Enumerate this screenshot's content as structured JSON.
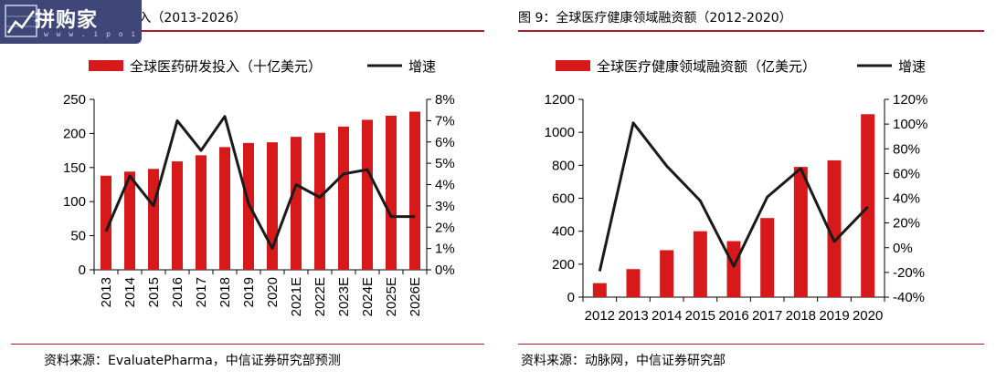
{
  "watermark": {
    "name": "拼购家",
    "url": "w w w . i p o i p o . c n"
  },
  "left": {
    "title": "图 8：全球医药研发投入（2013-2026）",
    "source": "资料来源：EvaluatePharma，中信证券研究部预测",
    "accent_color": "#b2182b"
  },
  "right": {
    "title": "图 9：全球医疗健康领域融资额（2012-2020）",
    "source": "资料来源：动脉网，中信证券研究部",
    "accent_color": "#b2182b"
  },
  "chart_data": [
    {
      "type": "bar+line",
      "categories": [
        "2013",
        "2014",
        "2015",
        "2016",
        "2017",
        "2018",
        "2019",
        "2020",
        "2021E",
        "2022E",
        "2023E",
        "2024E",
        "2025E",
        "2026E"
      ],
      "series": [
        {
          "name": "全球医药研发投入（十亿美元）",
          "type": "bar",
          "axis": "left",
          "color": "#d7191c",
          "values": [
            138,
            144,
            148,
            159,
            168,
            180,
            186,
            187,
            195,
            201,
            210,
            220,
            226,
            232
          ]
        },
        {
          "name": "增速",
          "type": "line",
          "axis": "right",
          "color": "#1a1a1a",
          "values": [
            1.8,
            4.4,
            3.0,
            7.0,
            5.6,
            7.2,
            3.1,
            1.0,
            4.0,
            3.4,
            4.5,
            4.7,
            2.5,
            2.5
          ]
        }
      ],
      "y_left": {
        "min": 0,
        "max": 250,
        "ticks": [
          "0",
          "50",
          "100",
          "150",
          "200",
          "250"
        ]
      },
      "y_right": {
        "min": 0,
        "max": 8,
        "ticks": [
          "0%",
          "1%",
          "2%",
          "3%",
          "4%",
          "5%",
          "6%",
          "7%",
          "8%"
        ]
      },
      "x_label_rotation": "vertical",
      "grid": false,
      "legend_position": "top"
    },
    {
      "type": "bar+line",
      "categories": [
        "2012",
        "2013",
        "2014",
        "2015",
        "2016",
        "2017",
        "2018",
        "2019",
        "2020"
      ],
      "series": [
        {
          "name": "全球医疗健康领域融资额（亿美元）",
          "type": "bar",
          "axis": "left",
          "color": "#d7191c",
          "values": [
            85,
            170,
            285,
            400,
            340,
            480,
            790,
            830,
            1110
          ]
        },
        {
          "name": "增速",
          "type": "line",
          "axis": "right",
          "color": "#1a1a1a",
          "values": [
            -19,
            101,
            66,
            38,
            -15,
            41,
            64,
            5,
            33
          ]
        }
      ],
      "y_left": {
        "min": 0,
        "max": 1200,
        "ticks": [
          "0",
          "200",
          "400",
          "600",
          "800",
          "1000",
          "1200"
        ]
      },
      "y_right": {
        "min": -40,
        "max": 120,
        "ticks": [
          "-40%",
          "-20%",
          "0%",
          "20%",
          "40%",
          "60%",
          "80%",
          "100%",
          "120%"
        ]
      },
      "x_label_rotation": "horizontal",
      "grid": false,
      "legend_position": "top"
    }
  ]
}
